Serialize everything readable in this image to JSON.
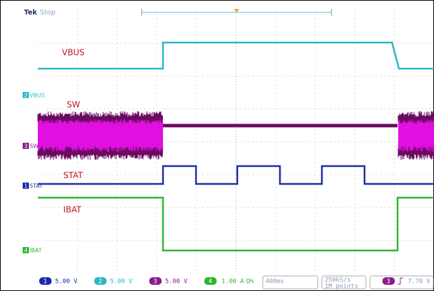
{
  "header": {
    "brand": "Tek",
    "status": "Stop"
  },
  "traces": [
    {
      "label": "VBUS",
      "marker": "2",
      "marker_label": "VBUS"
    },
    {
      "label": "SW",
      "marker": "3",
      "marker_label": "SW"
    },
    {
      "label": "STAT",
      "marker": "1",
      "marker_label": "STAT"
    },
    {
      "label": "IBAT",
      "marker": "4",
      "marker_label": "IBAT"
    }
  ],
  "footer": {
    "channels": [
      {
        "number": "1",
        "scale": "5.00 V"
      },
      {
        "number": "2",
        "scale": "5.00 V"
      },
      {
        "number": "3",
        "scale": "5.00 V"
      },
      {
        "number": "4",
        "scale": "1.00 A",
        "extra": "Ω%"
      }
    ],
    "timebase": "400ms",
    "sample_rate": "250kS/s",
    "record_length": "1M points",
    "trigger": {
      "channel": "3",
      "level": "7.70 V"
    }
  }
}
